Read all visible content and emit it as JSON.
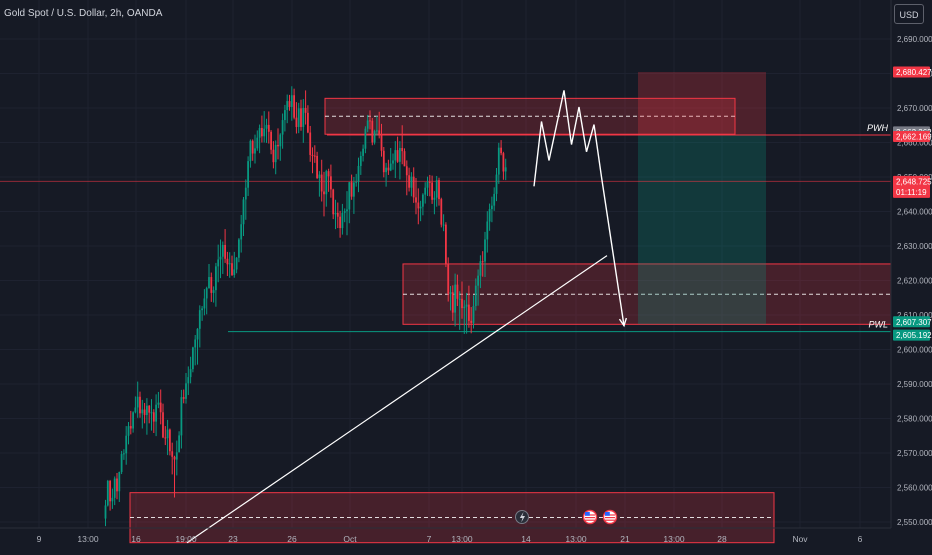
{
  "header": {
    "title": "Gold Spot / U.S. Dollar, 2h, OANDA",
    "currency_button": "USD"
  },
  "chart_data": {
    "type": "candlestick",
    "title": "Gold Spot / U.S. Dollar, 2h, OANDA",
    "symbol": "Gold Spot / U.S. Dollar",
    "interval": "2h",
    "exchange": "OANDA",
    "ylim": [
      2542,
      2700
    ],
    "y_ticks": [
      2550,
      2560,
      2570,
      2580,
      2590,
      2600,
      2610,
      2620,
      2630,
      2640,
      2650,
      2660,
      2670,
      2680,
      2690
    ],
    "y_tick_labels": [
      "2,550.000",
      "2,560.000",
      "2,570.000",
      "2,580.000",
      "2,590.000",
      "2,600.000",
      "2,610.000",
      "2,620.000",
      "2,630.000",
      "2,640.000",
      "2,650.000",
      "2,660.000",
      "2,670.000",
      "2,680.000",
      "2,690.000"
    ],
    "x_labels": [
      "9",
      "13:00",
      "16",
      "19:00",
      "23",
      "26",
      "Oct",
      "7",
      "13:00",
      "14",
      "13:00",
      "21",
      "13:00",
      "28",
      "Nov",
      "6"
    ],
    "price_tags": [
      {
        "label": "2,680.427",
        "value": 2680.427,
        "color": "#f23645"
      },
      {
        "label": "2,662.362",
        "value": 2662.362,
        "color": "#787b86"
      },
      {
        "label": "2,662.169",
        "value": 2662.169,
        "color": "#f23645"
      },
      {
        "label": "2,648.725",
        "value": 2648.725,
        "color": "#f23645",
        "sub": "01:11:19"
      },
      {
        "label": "2,607.307",
        "value": 2607.307,
        "color": "#089981"
      },
      {
        "label": "2,605.192",
        "value": 2605.192,
        "color": "#089981"
      }
    ],
    "horizontal_lines": [
      {
        "name": "PWH",
        "label": "PWH",
        "value": 2662.169,
        "color": "#f23645"
      },
      {
        "name": "PWL",
        "label": "PWL",
        "value": 2605.192,
        "color": "#089981"
      },
      {
        "name": "current-price",
        "value": 2648.725,
        "color": "#f23645"
      }
    ],
    "zones": [
      {
        "name": "supply-zone",
        "y_low": 2662.4,
        "y_high": 2672.8,
        "mid": 2667.6
      },
      {
        "name": "demand-zone",
        "y_low": 2607.3,
        "y_high": 2624.8,
        "mid": 2616.0
      },
      {
        "name": "lower-demand-zone",
        "y_low": 2544.0,
        "y_high": 2558.5,
        "mid": 2551.3
      }
    ],
    "position": {
      "type": "short",
      "entry": 2662.169,
      "stop": 2680.427,
      "target": 2607.307
    },
    "candles": [
      [
        2551.0,
        2556.4,
        2548.8,
        2554.8
      ],
      [
        2554.8,
        2562.2,
        2554.5,
        2561.9
      ],
      [
        2561.9,
        2562.2,
        2553.3,
        2556.0
      ],
      [
        2556.0,
        2559.7,
        2553.8,
        2557.0
      ],
      [
        2557.0,
        2563.2,
        2554.9,
        2562.6
      ],
      [
        2562.6,
        2564.2,
        2556.6,
        2558.9
      ],
      [
        2558.9,
        2564.6,
        2555.8,
        2564.5
      ],
      [
        2564.5,
        2570.6,
        2563.9,
        2569.7
      ],
      [
        2569.7,
        2571.1,
        2568.0,
        2569.9
      ],
      [
        2569.9,
        2577.8,
        2566.6,
        2575.0
      ],
      [
        2575.0,
        2579.0,
        2572.5,
        2577.8
      ],
      [
        2577.8,
        2582.2,
        2575.4,
        2577.1
      ],
      [
        2577.1,
        2582.1,
        2575.9,
        2581.8
      ],
      [
        2581.8,
        2586.4,
        2581.5,
        2583.2
      ],
      [
        2583.2,
        2590.7,
        2580.2,
        2586.3
      ],
      [
        2586.3,
        2587.8,
        2580.2,
        2581.5
      ],
      [
        2581.5,
        2585.4,
        2577.1,
        2582.6
      ],
      [
        2582.6,
        2584.5,
        2578.6,
        2581.0
      ],
      [
        2581.0,
        2585.9,
        2575.3,
        2583.7
      ],
      [
        2583.7,
        2583.9,
        2578.6,
        2581.7
      ],
      [
        2581.7,
        2585.6,
        2576.5,
        2581.8
      ],
      [
        2581.8,
        2582.7,
        2575.8,
        2579.1
      ],
      [
        2579.1,
        2587.0,
        2574.9,
        2584.0
      ],
      [
        2584.0,
        2587.7,
        2583.0,
        2584.6
      ],
      [
        2584.6,
        2588.4,
        2578.3,
        2581.8
      ],
      [
        2581.8,
        2584.3,
        2574.3,
        2574.5
      ],
      [
        2574.5,
        2577.8,
        2572.3,
        2574.3
      ],
      [
        2574.3,
        2579.6,
        2569.4,
        2576.8
      ],
      [
        2576.8,
        2577.1,
        2569.3,
        2570.5
      ],
      [
        2570.5,
        2573.0,
        2563.8,
        2568.9
      ],
      [
        2568.9,
        2569.2,
        2557.1,
        2568.1
      ],
      [
        2568.1,
        2573.6,
        2563.5,
        2570.2
      ],
      [
        2570.2,
        2576.3,
        2570.2,
        2575.1
      ],
      [
        2575.1,
        2588.3,
        2571.3,
        2586.2
      ],
      [
        2586.2,
        2588.4,
        2584.4,
        2585.7
      ],
      [
        2585.7,
        2593.2,
        2584.3,
        2590.2
      ],
      [
        2590.2,
        2595.1,
        2586.8,
        2592.0
      ],
      [
        2592.0,
        2597.9,
        2590.2,
        2594.3
      ],
      [
        2594.3,
        2600.8,
        2593.4,
        2600.6
      ],
      [
        2600.6,
        2604.2,
        2595.4,
        2602.9
      ],
      [
        2602.9,
        2606.2,
        2595.6,
        2606.0
      ],
      [
        2606.0,
        2612.8,
        2600.6,
        2611.4
      ],
      [
        2611.4,
        2612.6,
        2608.3,
        2611.9
      ],
      [
        2611.9,
        2617.5,
        2609.9,
        2614.8
      ],
      [
        2614.8,
        2618.2,
        2610.2,
        2617.8
      ],
      [
        2617.8,
        2624.8,
        2617.6,
        2621.0
      ],
      [
        2621.0,
        2622.3,
        2613.8,
        2616.4
      ],
      [
        2616.4,
        2618.3,
        2613.6,
        2617.2
      ],
      [
        2617.2,
        2625.1,
        2612.4,
        2624.1
      ],
      [
        2624.1,
        2630.4,
        2619.5,
        2626.1
      ],
      [
        2626.1,
        2631.9,
        2620.7,
        2626.9
      ],
      [
        2626.9,
        2631.3,
        2621.9,
        2630.3
      ],
      [
        2630.3,
        2634.9,
        2625.1,
        2626.3
      ],
      [
        2626.3,
        2628.3,
        2621.3,
        2624.7
      ],
      [
        2624.7,
        2628.2,
        2620.8,
        2625.0
      ],
      [
        2625.0,
        2627.2,
        2621.3,
        2621.6
      ],
      [
        2621.6,
        2628.3,
        2620.8,
        2623.2
      ],
      [
        2623.2,
        2626.8,
        2622.1,
        2626.6
      ],
      [
        2626.6,
        2632.3,
        2625.3,
        2631.9
      ],
      [
        2631.9,
        2639.0,
        2628.1,
        2636.3
      ],
      [
        2636.3,
        2644.2,
        2632.9,
        2643.5
      ],
      [
        2643.5,
        2649.3,
        2637.6,
        2646.9
      ],
      [
        2646.9,
        2656.0,
        2644.5,
        2654.6
      ],
      [
        2654.6,
        2660.9,
        2652.7,
        2660.5
      ],
      [
        2660.5,
        2660.9,
        2654.7,
        2656.8
      ],
      [
        2656.8,
        2662.3,
        2653.9,
        2658.3
      ],
      [
        2658.3,
        2663.5,
        2657.6,
        2661.4
      ],
      [
        2661.4,
        2665.2,
        2656.9,
        2664.2
      ],
      [
        2664.2,
        2667.8,
        2660.0,
        2661.8
      ],
      [
        2661.8,
        2669.1,
        2660.0,
        2664.0
      ],
      [
        2664.0,
        2666.9,
        2659.9,
        2665.1
      ],
      [
        2665.1,
        2669.0,
        2659.7,
        2663.1
      ],
      [
        2663.1,
        2663.6,
        2656.6,
        2657.9
      ],
      [
        2657.9,
        2660.4,
        2652.5,
        2654.3
      ],
      [
        2654.3,
        2660.6,
        2650.8,
        2659.3
      ],
      [
        2659.3,
        2664.1,
        2655.1,
        2658.9
      ],
      [
        2658.9,
        2662.7,
        2654.7,
        2662.3
      ],
      [
        2662.3,
        2668.4,
        2658.2,
        2666.5
      ],
      [
        2666.5,
        2670.9,
        2663.2,
        2669.4
      ],
      [
        2669.4,
        2673.9,
        2665.6,
        2672.0
      ],
      [
        2672.0,
        2673.8,
        2669.2,
        2670.3
      ],
      [
        2670.3,
        2676.3,
        2666.3,
        2673.7
      ],
      [
        2673.7,
        2675.6,
        2666.7,
        2667.2
      ],
      [
        2667.2,
        2671.7,
        2662.6,
        2664.5
      ],
      [
        2664.5,
        2671.5,
        2662.7,
        2669.9
      ],
      [
        2669.9,
        2672.4,
        2663.4,
        2664.5
      ],
      [
        2664.5,
        2672.6,
        2659.9,
        2670.0
      ],
      [
        2670.0,
        2675.1,
        2665.2,
        2668.6
      ],
      [
        2668.6,
        2670.8,
        2662.7,
        2662.9
      ],
      [
        2662.9,
        2664.8,
        2654.4,
        2656.4
      ],
      [
        2656.4,
        2658.6,
        2651.1,
        2656.2
      ],
      [
        2656.2,
        2659.2,
        2654.1,
        2656.1
      ],
      [
        2656.1,
        2657.3,
        2649.4,
        2649.7
      ],
      [
        2649.7,
        2651.7,
        2644.3,
        2650.7
      ],
      [
        2650.7,
        2655.0,
        2642.9,
        2645.8
      ],
      [
        2645.8,
        2651.5,
        2638.6,
        2645.0
      ],
      [
        2645.0,
        2652.1,
        2641.4,
        2651.7
      ],
      [
        2651.7,
        2652.4,
        2645.7,
        2650.2
      ],
      [
        2650.2,
        2653.6,
        2644.0,
        2646.4
      ],
      [
        2646.4,
        2646.6,
        2637.8,
        2639.2
      ],
      [
        2639.2,
        2643.4,
        2634.9,
        2639.6
      ],
      [
        2639.6,
        2642.6,
        2635.2,
        2638.5
      ],
      [
        2638.5,
        2640.2,
        2632.4,
        2635.2
      ],
      [
        2635.2,
        2642.2,
        2633.3,
        2639.6
      ],
      [
        2639.6,
        2640.9,
        2636.9,
        2640.1
      ],
      [
        2640.1,
        2645.9,
        2633.1,
        2640.6
      ],
      [
        2640.6,
        2648.6,
        2636.6,
        2648.5
      ],
      [
        2648.5,
        2650.7,
        2643.4,
        2644.3
      ],
      [
        2644.3,
        2650.0,
        2639.3,
        2648.4
      ],
      [
        2648.4,
        2650.9,
        2647.2,
        2648.6
      ],
      [
        2648.6,
        2655.6,
        2645.6,
        2653.2
      ],
      [
        2653.2,
        2657.4,
        2650.6,
        2656.1
      ],
      [
        2656.1,
        2659.4,
        2654.5,
        2658.2
      ],
      [
        2658.2,
        2664.7,
        2656.9,
        2664.0
      ],
      [
        2664.0,
        2668.0,
        2663.0,
        2666.4
      ],
      [
        2666.4,
        2669.3,
        2663.8,
        2666.3
      ],
      [
        2666.3,
        2667.1,
        2659.2,
        2660.0
      ],
      [
        2660.0,
        2663.7,
        2659.4,
        2663.3
      ],
      [
        2663.3,
        2667.7,
        2662.0,
        2663.5
      ],
      [
        2663.5,
        2668.9,
        2661.2,
        2662.1
      ],
      [
        2662.1,
        2665.4,
        2655.9,
        2657.6
      ],
      [
        2657.6,
        2658.7,
        2649.9,
        2651.4
      ],
      [
        2651.4,
        2654.1,
        2647.2,
        2652.7
      ],
      [
        2652.7,
        2655.0,
        2650.6,
        2651.9
      ],
      [
        2651.9,
        2658.4,
        2651.7,
        2653.9
      ],
      [
        2653.9,
        2656.8,
        2652.1,
        2654.8
      ],
      [
        2654.8,
        2660.4,
        2649.7,
        2657.8
      ],
      [
        2657.8,
        2661.7,
        2654.1,
        2654.4
      ],
      [
        2654.4,
        2660.4,
        2649.3,
        2658.4
      ],
      [
        2658.4,
        2665.0,
        2653.7,
        2657.5
      ],
      [
        2657.5,
        2658.3,
        2653.1,
        2653.1
      ],
      [
        2653.1,
        2654.8,
        2644.7,
        2650.5
      ],
      [
        2650.5,
        2652.7,
        2645.8,
        2646.9
      ],
      [
        2646.9,
        2651.4,
        2644.4,
        2650.1
      ],
      [
        2650.1,
        2652.8,
        2642.5,
        2644.1
      ],
      [
        2644.1,
        2649.7,
        2639.2,
        2642.6
      ],
      [
        2642.6,
        2646.7,
        2636.3,
        2640.9
      ],
      [
        2640.9,
        2643.1,
        2637.2,
        2641.4
      ],
      [
        2641.4,
        2645.3,
        2638.9,
        2644.9
      ],
      [
        2644.9,
        2648.5,
        2642.3,
        2646.9
      ],
      [
        2646.9,
        2650.1,
        2644.5,
        2648.6
      ],
      [
        2648.6,
        2650.6,
        2644.4,
        2648.4
      ],
      [
        2648.4,
        2650.4,
        2642.2,
        2643.4
      ],
      [
        2643.4,
        2645.9,
        2639.2,
        2644.0
      ],
      [
        2644.0,
        2650.3,
        2641.4,
        2649.1
      ],
      [
        2649.1,
        2649.8,
        2641.7,
        2643.6
      ],
      [
        2643.6,
        2644.0,
        2635.4,
        2636.2
      ],
      [
        2636.2,
        2639.2,
        2634.3,
        2636.2
      ],
      [
        2636.2,
        2636.9,
        2623.9,
        2624.7
      ],
      [
        2624.7,
        2626.7,
        2613.9,
        2616.1
      ],
      [
        2616.1,
        2618.4,
        2611.3,
        2616.6
      ],
      [
        2616.6,
        2618.6,
        2608.3,
        2610.7
      ],
      [
        2610.7,
        2622.0,
        2606.7,
        2618.8
      ],
      [
        2618.8,
        2621.7,
        2612.6,
        2614.7
      ],
      [
        2614.7,
        2616.9,
        2605.7,
        2614.7
      ],
      [
        2614.7,
        2619.7,
        2608.9,
        2612.0
      ],
      [
        2612.0,
        2614.3,
        2604.5,
        2612.4
      ],
      [
        2612.4,
        2616.4,
        2604.6,
        2613.0
      ],
      [
        2613.0,
        2618.5,
        2606.3,
        2608.3
      ],
      [
        2608.3,
        2612.3,
        2604.7,
        2607.7
      ],
      [
        2607.7,
        2615.7,
        2606.1,
        2612.6
      ],
      [
        2612.6,
        2620.6,
        2611.3,
        2618.5
      ],
      [
        2618.5,
        2623.2,
        2612.7,
        2621.4
      ],
      [
        2621.4,
        2627.3,
        2617.8,
        2625.6
      ],
      [
        2625.6,
        2628.5,
        2621.1,
        2625.5
      ],
      [
        2625.5,
        2634.1,
        2621.0,
        2631.9
      ],
      [
        2631.9,
        2640.1,
        2628.1,
        2637.1
      ],
      [
        2637.1,
        2642.3,
        2634.4,
        2640.7
      ],
      [
        2640.7,
        2644.3,
        2636.9,
        2641.7
      ],
      [
        2641.7,
        2647.0,
        2640.2,
        2645.1
      ],
      [
        2645.1,
        2652.6,
        2643.0,
        2650.7
      ],
      [
        2650.7,
        2659.9,
        2648.0,
        2658.5
      ],
      [
        2658.5,
        2660.7,
        2656.3,
        2656.9
      ],
      [
        2656.9,
        2657.3,
        2649.2,
        2651.6
      ],
      [
        2651.6,
        2655.3,
        2649.1,
        2652.8
      ]
    ],
    "projected_path": [
      [
        2647.3,
        0
      ],
      [
        2666.1,
        1
      ],
      [
        2654.8,
        2
      ],
      [
        2675.1,
        4
      ],
      [
        2659.4,
        5
      ],
      [
        2670.3,
        6
      ],
      [
        2657.3,
        7
      ],
      [
        2665.2,
        8
      ],
      [
        2650.0,
        9
      ],
      [
        2606.9,
        12
      ]
    ],
    "trendline": {
      "from": 2544.0,
      "to": 2627.2
    }
  }
}
